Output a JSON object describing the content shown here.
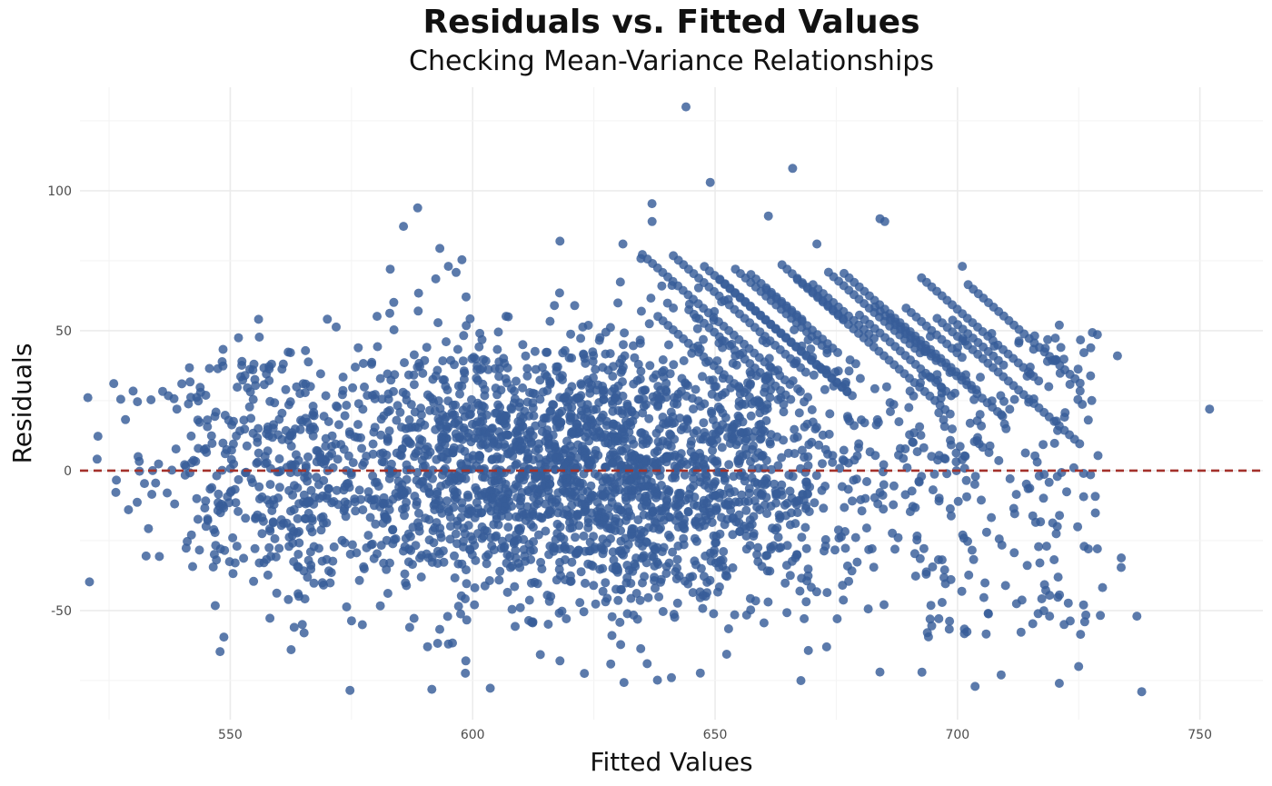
{
  "chart_data": {
    "type": "scatter",
    "title": "Residuals vs. Fitted Values",
    "subtitle": "Checking Mean-Variance Relationships",
    "xlabel": "Fitted Values",
    "ylabel": "Residuals",
    "xlim": [
      519,
      763
    ],
    "ylim": [
      -89,
      137
    ],
    "x_ticks": [
      550,
      600,
      650,
      700,
      750
    ],
    "y_ticks": [
      -50,
      0,
      50,
      100
    ],
    "grid": true,
    "reference_line": {
      "y": 0,
      "style": "dashed",
      "color": "#a3312b"
    },
    "point_color": "#375d99",
    "outlier_points": [
      {
        "x": 644,
        "y": 130
      },
      {
        "x": 649,
        "y": 103
      },
      {
        "x": 666,
        "y": 108
      },
      {
        "x": 661,
        "y": 91
      },
      {
        "x": 684,
        "y": 90
      },
      {
        "x": 685,
        "y": 89
      },
      {
        "x": 637,
        "y": 89
      },
      {
        "x": 618,
        "y": 82
      },
      {
        "x": 631,
        "y": 81
      },
      {
        "x": 671,
        "y": 81
      },
      {
        "x": 701,
        "y": 73
      },
      {
        "x": 595,
        "y": 73
      },
      {
        "x": 583,
        "y": 72
      },
      {
        "x": 534,
        "y": 0
      },
      {
        "x": 529,
        "y": -14
      },
      {
        "x": 531,
        "y": 5
      },
      {
        "x": 537,
        "y": -8
      },
      {
        "x": 540,
        "y": 31
      },
      {
        "x": 539,
        "y": 22
      },
      {
        "x": 752,
        "y": 22
      },
      {
        "x": 733,
        "y": 41
      },
      {
        "x": 721,
        "y": 52
      },
      {
        "x": 715,
        "y": 37
      },
      {
        "x": 738,
        "y": -79
      },
      {
        "x": 721,
        "y": -76
      },
      {
        "x": 725,
        "y": -70
      },
      {
        "x": 737,
        "y": -52
      },
      {
        "x": 727,
        "y": -28
      },
      {
        "x": 726,
        "y": -1
      },
      {
        "x": 724,
        "y": 1
      },
      {
        "x": 717,
        "y": -33
      },
      {
        "x": 719,
        "y": -52
      },
      {
        "x": 722,
        "y": -55
      },
      {
        "x": 726,
        "y": -48
      },
      {
        "x": 641,
        "y": -74
      },
      {
        "x": 618,
        "y": -68
      },
      {
        "x": 636,
        "y": -69
      },
      {
        "x": 709,
        "y": -73
      },
      {
        "x": 684,
        "y": -72
      },
      {
        "x": 673,
        "y": -63
      },
      {
        "x": 587,
        "y": -56
      },
      {
        "x": 595,
        "y": -62
      },
      {
        "x": 551,
        "y": -33
      },
      {
        "x": 542,
        "y": -23
      },
      {
        "x": 548,
        "y": -28
      },
      {
        "x": 564,
        "y": -44
      },
      {
        "x": 556,
        "y": -33
      }
    ],
    "cluster_description": {
      "center_x": 620,
      "center_y": 0,
      "x_spread": 35,
      "y_spread": 25,
      "approx_points": 3500
    }
  }
}
